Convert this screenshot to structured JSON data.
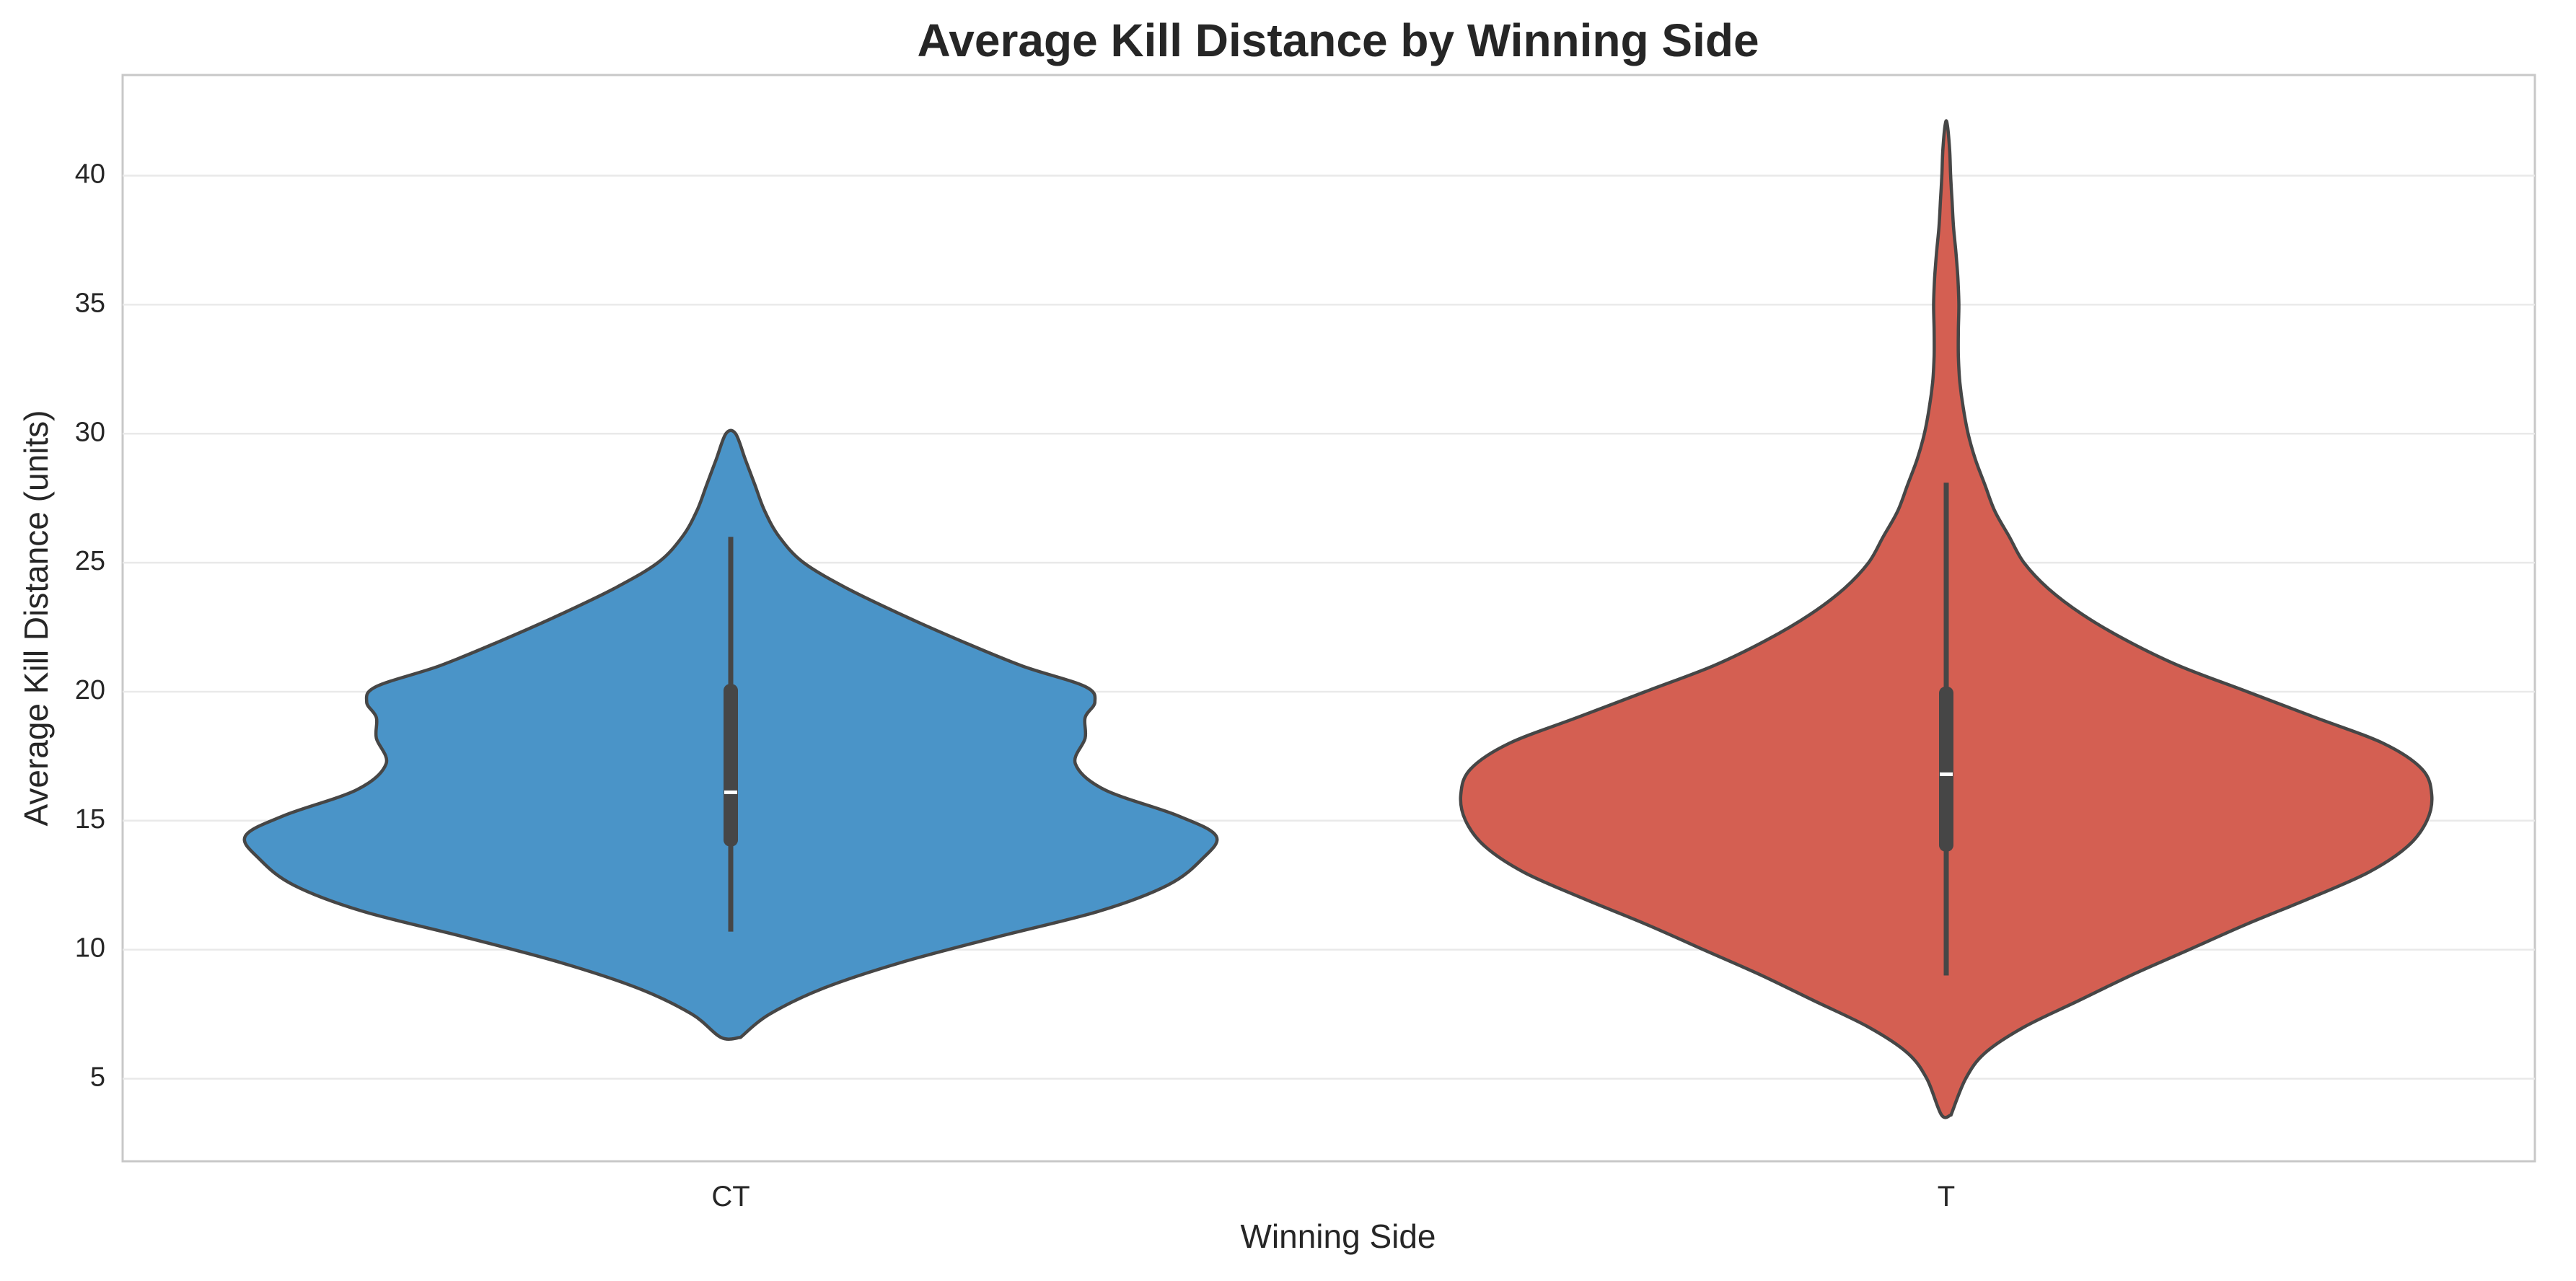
{
  "chart_data": {
    "type": "violin",
    "title": "Average Kill Distance by Winning Side",
    "xlabel": "Winning Side",
    "ylabel": "Average Kill Distance (units)",
    "categories": [
      "CT",
      "T"
    ],
    "ylim": [
      1.8,
      43.9
    ],
    "yticks": [
      5,
      10,
      15,
      20,
      25,
      30,
      35,
      40
    ],
    "grid": true,
    "series": [
      {
        "category": "CT",
        "color": "#4a94c8",
        "min": 6.6,
        "max": 30.0,
        "whisker_low": 10.7,
        "q1": 14.0,
        "median": 16.1,
        "q3": 20.3,
        "whisker_high": 26.0,
        "density_profile": [
          [
            6.6,
            0.02
          ],
          [
            7.5,
            0.08
          ],
          [
            8.5,
            0.19
          ],
          [
            9.5,
            0.35
          ],
          [
            10.5,
            0.55
          ],
          [
            11.5,
            0.76
          ],
          [
            12.5,
            0.9
          ],
          [
            13.5,
            0.97
          ],
          [
            14.4,
            1.0
          ],
          [
            15.2,
            0.92
          ],
          [
            16.2,
            0.77
          ],
          [
            17.2,
            0.71
          ],
          [
            18.2,
            0.73
          ],
          [
            19.0,
            0.73
          ],
          [
            19.6,
            0.75
          ],
          [
            20.2,
            0.73
          ],
          [
            21.0,
            0.6
          ],
          [
            22.0,
            0.47
          ],
          [
            23.0,
            0.35
          ],
          [
            24.0,
            0.24
          ],
          [
            25.0,
            0.15
          ],
          [
            26.0,
            0.1
          ],
          [
            27.0,
            0.07
          ],
          [
            28.0,
            0.05
          ],
          [
            29.0,
            0.03
          ],
          [
            30.0,
            0.01
          ]
        ]
      },
      {
        "category": "T",
        "color": "#d45f52",
        "min": 3.6,
        "max": 42.0,
        "whisker_low": 9.0,
        "q1": 13.8,
        "median": 16.8,
        "q3": 20.2,
        "whisker_high": 28.1,
        "density_profile": [
          [
            3.6,
            0.01
          ],
          [
            5.0,
            0.04
          ],
          [
            6.0,
            0.08
          ],
          [
            7.0,
            0.16
          ],
          [
            8.0,
            0.27
          ],
          [
            9.0,
            0.38
          ],
          [
            10.0,
            0.5
          ],
          [
            11.0,
            0.62
          ],
          [
            12.0,
            0.75
          ],
          [
            13.0,
            0.87
          ],
          [
            14.0,
            0.95
          ],
          [
            15.0,
            0.99
          ],
          [
            16.0,
            1.0
          ],
          [
            17.0,
            0.98
          ],
          [
            18.0,
            0.9
          ],
          [
            19.0,
            0.76
          ],
          [
            20.0,
            0.62
          ],
          [
            21.0,
            0.48
          ],
          [
            22.0,
            0.37
          ],
          [
            23.0,
            0.28
          ],
          [
            24.0,
            0.21
          ],
          [
            25.0,
            0.16
          ],
          [
            26.0,
            0.13
          ],
          [
            27.0,
            0.1
          ],
          [
            28.0,
            0.08
          ],
          [
            29.0,
            0.06
          ],
          [
            30.0,
            0.045
          ],
          [
            31.0,
            0.035
          ],
          [
            32.0,
            0.028
          ],
          [
            33.0,
            0.025
          ],
          [
            34.0,
            0.025
          ],
          [
            35.0,
            0.026
          ],
          [
            36.0,
            0.024
          ],
          [
            37.0,
            0.02
          ],
          [
            38.0,
            0.015
          ],
          [
            39.0,
            0.012
          ],
          [
            40.0,
            0.009
          ],
          [
            41.0,
            0.007
          ],
          [
            42.0,
            0.002
          ]
        ]
      }
    ]
  }
}
